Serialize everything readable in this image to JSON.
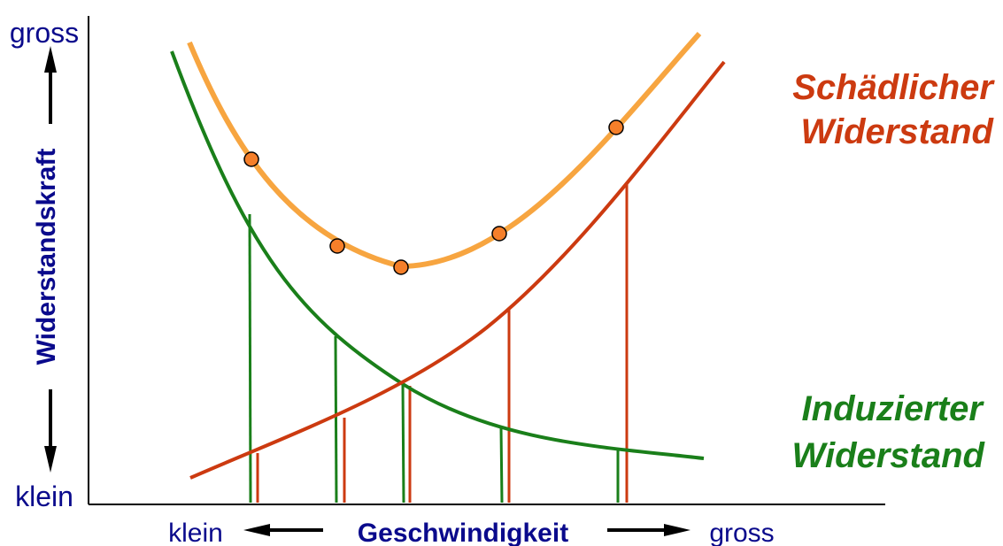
{
  "axes": {
    "y_title": "Widerstandskraft",
    "y_top": "gross",
    "y_bottom": "klein",
    "x_title": "Geschwindigkeit",
    "x_left": "klein",
    "x_right": "gross"
  },
  "legend": {
    "parasite": [
      "Schädlicher",
      "Widerstand"
    ],
    "induced": [
      "Induzierter",
      "Widerstand"
    ]
  },
  "colors": {
    "axis_text": "#0a0a8c",
    "axis_line": "#000000",
    "total": "#f7a540",
    "parasite": "#cc3a10",
    "induced": "#1a7f1a",
    "marker_fill": "#f57f2a"
  }
}
